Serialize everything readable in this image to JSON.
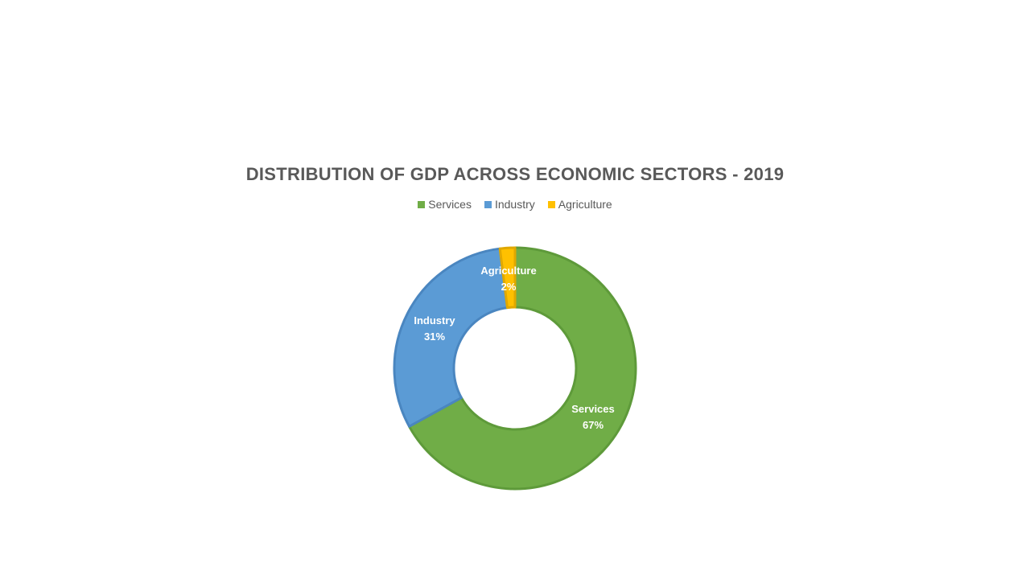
{
  "chart_data": {
    "type": "pie",
    "title": "DISTRIBUTION OF GDP ACROSS ECONOMIC SECTORS - 2019",
    "categories": [
      "Services",
      "Industry",
      "Agriculture"
    ],
    "values": [
      67,
      31,
      2
    ],
    "value_labels": [
      "67%",
      "31%",
      "2%"
    ],
    "colors": [
      "#70AD47",
      "#5B9BD5",
      "#FFC000"
    ],
    "border_colors": [
      "#5E9A3A",
      "#4A86C0",
      "#E0A800"
    ],
    "legend_position": "top",
    "donut": true
  }
}
